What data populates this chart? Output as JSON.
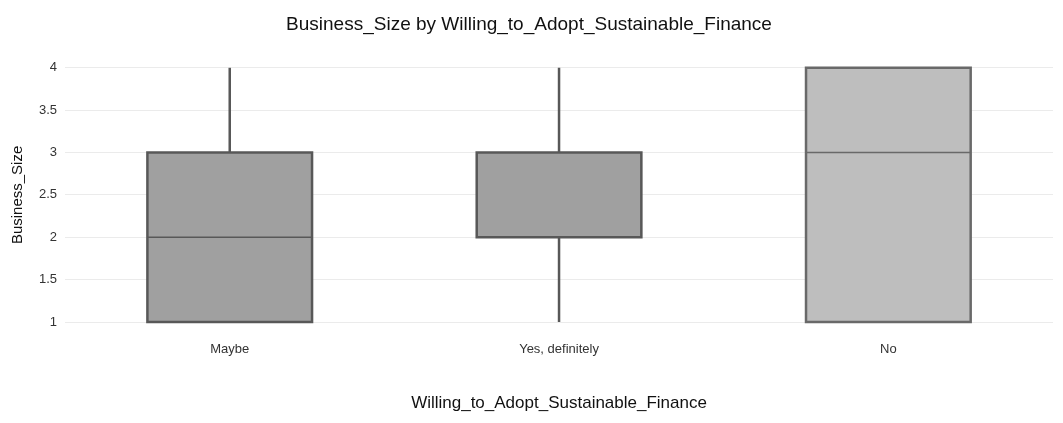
{
  "chart_data": {
    "type": "box",
    "title": "Business_Size by Willing_to_Adopt_Sustainable_Finance",
    "xlabel": "Willing_to_Adopt_Sustainable_Finance",
    "ylabel": "Business_Size",
    "categories": [
      "Maybe",
      "Yes, definitely",
      "No"
    ],
    "boxes": [
      {
        "low": 1,
        "q1": 1,
        "median": 2,
        "q3": 3,
        "high": 4
      },
      {
        "low": 1,
        "q1": 2,
        "median": 2,
        "q3": 3,
        "high": 4
      },
      {
        "low": 1,
        "q1": 1,
        "median": 3,
        "q3": 4,
        "high": 4
      }
    ],
    "colors": [
      "#a0a0a0",
      "#a0a0a0",
      "#bebebe"
    ],
    "ylim": [
      1,
      4
    ],
    "yticks": [
      1,
      1.5,
      2,
      2.5,
      3,
      3.5,
      4
    ],
    "grid": "y",
    "legend": false
  }
}
